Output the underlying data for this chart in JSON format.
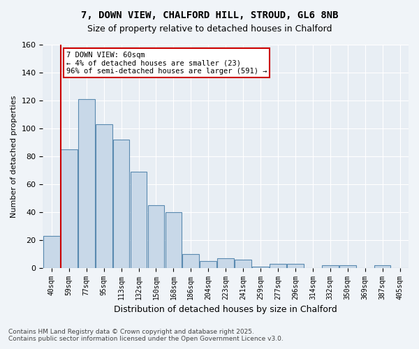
{
  "title_line1": "7, DOWN VIEW, CHALFORD HILL, STROUD, GL6 8NB",
  "title_line2": "Size of property relative to detached houses in Chalford",
  "xlabel": "Distribution of detached houses by size in Chalford",
  "ylabel": "Number of detached properties",
  "bar_color": "#c8d8e8",
  "bar_edge_color": "#5a8ab0",
  "categories": [
    "40sqm",
    "59sqm",
    "77sqm",
    "95sqm",
    "113sqm",
    "132sqm",
    "150sqm",
    "168sqm",
    "186sqm",
    "204sqm",
    "223sqm",
    "241sqm",
    "259sqm",
    "277sqm",
    "296sqm",
    "314sqm",
    "332sqm",
    "350sqm",
    "369sqm",
    "387sqm",
    "405sqm"
  ],
  "values": [
    23,
    85,
    121,
    103,
    92,
    69,
    45,
    40,
    10,
    5,
    7,
    6,
    1,
    3,
    3,
    0,
    2,
    2,
    0,
    2,
    0
  ],
  "ylim": [
    0,
    160
  ],
  "yticks": [
    0,
    20,
    40,
    60,
    80,
    100,
    120,
    140,
    160
  ],
  "red_line_index": 1,
  "annotation_title": "7 DOWN VIEW: 60sqm",
  "annotation_line2": "← 4% of detached houses are smaller (23)",
  "annotation_line3": "96% of semi-detached houses are larger (591) →",
  "footer_line1": "Contains HM Land Registry data © Crown copyright and database right 2025.",
  "footer_line2": "Contains public sector information licensed under the Open Government Licence v3.0.",
  "background_color": "#f0f4f8",
  "plot_bg_color": "#e8eef4",
  "grid_color": "#ffffff",
  "red_line_color": "#cc0000",
  "annotation_box_color": "#ffffff",
  "annotation_border_color": "#cc0000"
}
